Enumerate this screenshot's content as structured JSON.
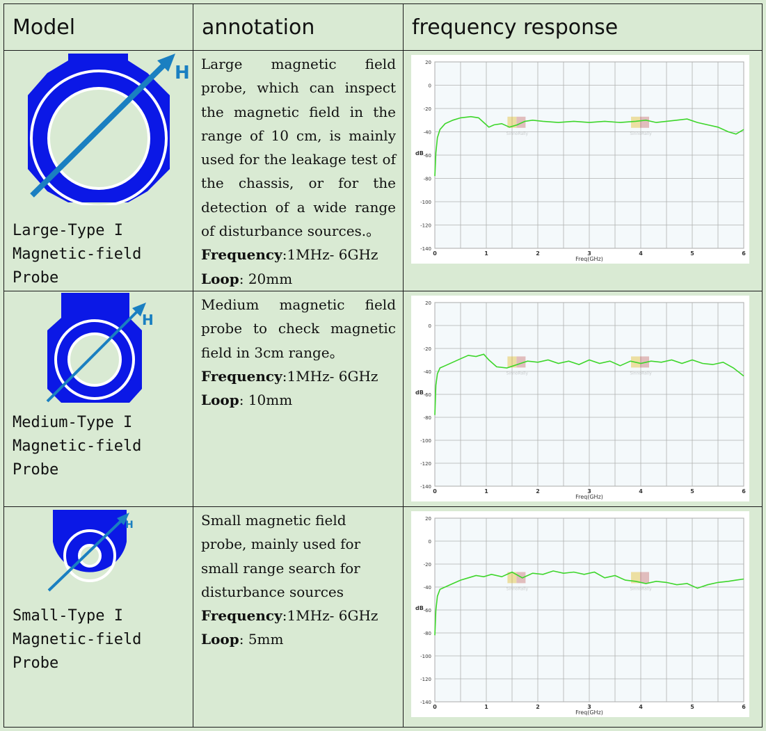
{
  "header": {
    "model": "Model",
    "annotation": "annotation",
    "frequency_response": "frequency response"
  },
  "rows": [
    {
      "name": [
        "Large-Type I",
        "Magnetic-field",
        "Probe"
      ],
      "description": "Large magnetic field probe, which can inspect the magnetic field in the range of 10 cm, is mainly used for the leakage test of the chassis, or for the detection of a wide range of disturbance sources.。",
      "frequency_label": "Frequency",
      "frequency_value": ":1MHz- 6GHz",
      "loop_label": "Loop",
      "loop_value": ": 20mm",
      "probe_letter": "H"
    },
    {
      "name": [
        "Medium-Type I",
        "Magnetic-field",
        "Probe"
      ],
      "description": "Medium magnetic field probe to check magnetic field in 3cm range。",
      "frequency_label": "Frequency",
      "frequency_value": ":1MHz- 6GHz",
      "loop_label": "Loop",
      "loop_value": ": 10mm",
      "probe_letter": "H"
    },
    {
      "name": [
        "Small-Type I",
        "Magnetic-field",
        "Probe"
      ],
      "description": "Small magnetic field probe, mainly used for small range search for disturbance sources",
      "frequency_label": "Frequency",
      "frequency_value": ":1MHz- 6GHz",
      "loop_label": "Loop",
      "loop_value": ": 5mm",
      "probe_letter": "H"
    }
  ],
  "colors": {
    "background": "#d9ead3",
    "probe_blue": "#0b18e6",
    "arrow_blue": "#1a7fc1",
    "curve_green": "#3dd62a",
    "grid": "#b0b0b0"
  },
  "watermark": "SinnoRally",
  "chart_data": [
    {
      "type": "line",
      "xlabel": "Freq(GHz)",
      "ylabel": "dB",
      "xlim": [
        0,
        6
      ],
      "ylim": [
        -140,
        20
      ],
      "xticks": [
        "0",
        "1",
        "2",
        "3",
        "4",
        "5",
        "6"
      ],
      "yticks": [
        "20",
        "0",
        "-20",
        "-40",
        "-60",
        "-80",
        "-100",
        "-120",
        "-140"
      ],
      "grid": true,
      "series": [
        {
          "x": [
            0,
            0.02,
            0.05,
            0.1,
            0.2,
            0.35,
            0.5,
            0.7,
            0.85,
            0.95,
            1.05,
            1.15,
            1.3,
            1.45,
            1.6,
            1.75,
            1.9,
            2.1,
            2.4,
            2.7,
            3.0,
            3.3,
            3.6,
            3.9,
            4.1,
            4.3,
            4.5,
            4.7,
            4.9,
            5.1,
            5.3,
            5.5,
            5.7,
            5.85,
            6.0
          ],
          "y": [
            -78,
            -58,
            -45,
            -38,
            -33,
            -30,
            -28,
            -27,
            -28,
            -32,
            -36,
            -34,
            -33,
            -36,
            -34,
            -31,
            -30,
            -31,
            -32,
            -31,
            -32,
            -31,
            -32,
            -31,
            -30,
            -32,
            -31,
            -30,
            -29,
            -32,
            -34,
            -36,
            -40,
            -42,
            -38
          ]
        }
      ]
    },
    {
      "type": "line",
      "xlabel": "Freq(GHz)",
      "ylabel": "dB",
      "xlim": [
        0,
        6
      ],
      "ylim": [
        -140,
        20
      ],
      "xticks": [
        "0",
        "1",
        "2",
        "3",
        "4",
        "5",
        "6"
      ],
      "yticks": [
        "20",
        "0",
        "-20",
        "-40",
        "-60",
        "-80",
        "-100",
        "-120",
        "-140"
      ],
      "grid": true,
      "series": [
        {
          "x": [
            0,
            0.02,
            0.05,
            0.1,
            0.2,
            0.35,
            0.5,
            0.65,
            0.8,
            0.95,
            1.05,
            1.2,
            1.4,
            1.6,
            1.8,
            2.0,
            2.2,
            2.4,
            2.6,
            2.8,
            3.0,
            3.2,
            3.4,
            3.6,
            3.8,
            4.0,
            4.2,
            4.4,
            4.6,
            4.8,
            5.0,
            5.2,
            5.4,
            5.6,
            5.8,
            6.0
          ],
          "y": [
            -78,
            -52,
            -42,
            -37,
            -35,
            -32,
            -29,
            -26,
            -27,
            -25,
            -30,
            -36,
            -37,
            -34,
            -31,
            -32,
            -30,
            -33,
            -31,
            -34,
            -30,
            -33,
            -31,
            -35,
            -31,
            -33,
            -31,
            -32,
            -30,
            -33,
            -30,
            -33,
            -34,
            -32,
            -37,
            -44
          ]
        }
      ]
    },
    {
      "type": "line",
      "xlabel": "Freq(GHz)",
      "ylabel": "dB",
      "xlim": [
        0,
        6
      ],
      "ylim": [
        -140,
        20
      ],
      "xticks": [
        "0",
        "1",
        "2",
        "3",
        "4",
        "5",
        "6"
      ],
      "yticks": [
        "20",
        "0",
        "-20",
        "-40",
        "-60",
        "-80",
        "-100",
        "-120",
        "-140"
      ],
      "grid": true,
      "series": [
        {
          "x": [
            0,
            0.02,
            0.05,
            0.1,
            0.2,
            0.35,
            0.5,
            0.65,
            0.8,
            0.95,
            1.1,
            1.3,
            1.5,
            1.7,
            1.9,
            2.1,
            2.3,
            2.5,
            2.7,
            2.9,
            3.1,
            3.3,
            3.5,
            3.7,
            3.9,
            4.1,
            4.3,
            4.5,
            4.7,
            4.9,
            5.1,
            5.3,
            5.5,
            5.7,
            5.85,
            6.0
          ],
          "y": [
            -82,
            -60,
            -48,
            -42,
            -40,
            -37,
            -34,
            -32,
            -30,
            -31,
            -29,
            -31,
            -27,
            -32,
            -28,
            -29,
            -26,
            -28,
            -27,
            -29,
            -27,
            -32,
            -30,
            -34,
            -35,
            -37,
            -35,
            -36,
            -38,
            -37,
            -41,
            -38,
            -36,
            -35,
            -34,
            -33
          ]
        }
      ]
    }
  ]
}
